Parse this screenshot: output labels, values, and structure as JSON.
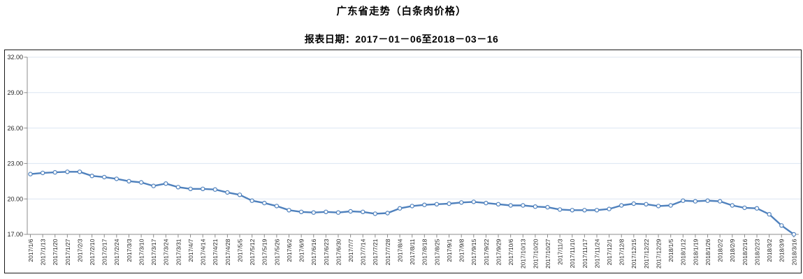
{
  "page": {
    "title": "广东省走势（白条肉价格）",
    "subtitle": "报表日期：2017－01－06至2018－03－16"
  },
  "colors": {
    "line": "#4f81bd",
    "marker_fill": "#ffffff",
    "grid": "#dce6f2",
    "axis": "#8c8c8c",
    "text": "#262626",
    "border": "#1a1a1a"
  },
  "chart_data": {
    "type": "line",
    "title": "广东省走势（白条肉价格）",
    "subtitle": "报表日期：2017－01－06至2018－03－16",
    "xlabel": "",
    "ylabel": "",
    "ylim": [
      17,
      32
    ],
    "yticks": [
      17,
      20,
      23,
      26,
      29,
      32
    ],
    "ytick_labels": [
      "17.00",
      "20.00",
      "23.00",
      "26.00",
      "29.00",
      "32.00"
    ],
    "grid": "horizontal",
    "legend": "none",
    "marker": "open-circle",
    "x": [
      "2017/1/6",
      "2017/1/13",
      "2017/1/20",
      "2017/1/27",
      "2017/2/3",
      "2017/2/10",
      "2017/2/17",
      "2017/2/24",
      "2017/3/3",
      "2017/3/10",
      "2017/3/17",
      "2017/3/24",
      "2017/3/31",
      "2017/4/7",
      "2017/4/14",
      "2017/4/21",
      "2017/4/28",
      "2017/5/5",
      "2017/5/12",
      "2017/5/19",
      "2017/5/26",
      "2017/6/2",
      "2017/6/9",
      "2017/6/16",
      "2017/6/23",
      "2017/6/30",
      "2017/7/7",
      "2017/7/14",
      "2017/7/21",
      "2017/7/28",
      "2017/8/4",
      "2017/8/11",
      "2017/8/18",
      "2017/8/25",
      "2017/9/1",
      "2017/9/8",
      "2017/9/15",
      "2017/9/22",
      "2017/9/29",
      "2017/10/6",
      "2017/10/13",
      "2017/10/20",
      "2017/10/27",
      "2017/11/3",
      "2017/11/10",
      "2017/11/17",
      "2017/11/24",
      "2017/12/1",
      "2017/12/8",
      "2017/12/15",
      "2017/12/22",
      "2017/12/29",
      "2018/1/5",
      "2018/1/12",
      "2018/1/19",
      "2018/1/26",
      "2018/2/2",
      "2018/2/9",
      "2018/2/16",
      "2018/2/23",
      "2018/3/2",
      "2018/3/9",
      "2018/3/16"
    ],
    "series": [
      {
        "name": "白条肉价格",
        "values": [
          22.1,
          22.2,
          22.25,
          22.3,
          22.3,
          21.95,
          21.85,
          21.7,
          21.5,
          21.4,
          21.1,
          21.3,
          21.0,
          20.85,
          20.85,
          20.8,
          20.55,
          20.35,
          19.85,
          19.65,
          19.4,
          19.05,
          18.9,
          18.85,
          18.9,
          18.85,
          18.95,
          18.9,
          18.75,
          18.8,
          19.2,
          19.4,
          19.5,
          19.55,
          19.6,
          19.7,
          19.75,
          19.65,
          19.55,
          19.45,
          19.45,
          19.35,
          19.3,
          19.1,
          19.05,
          19.05,
          19.05,
          19.15,
          19.45,
          19.6,
          19.55,
          19.4,
          19.45,
          19.85,
          19.8,
          19.85,
          19.8,
          19.45,
          19.25,
          19.2,
          18.7,
          17.75,
          17.0
        ]
      }
    ]
  }
}
